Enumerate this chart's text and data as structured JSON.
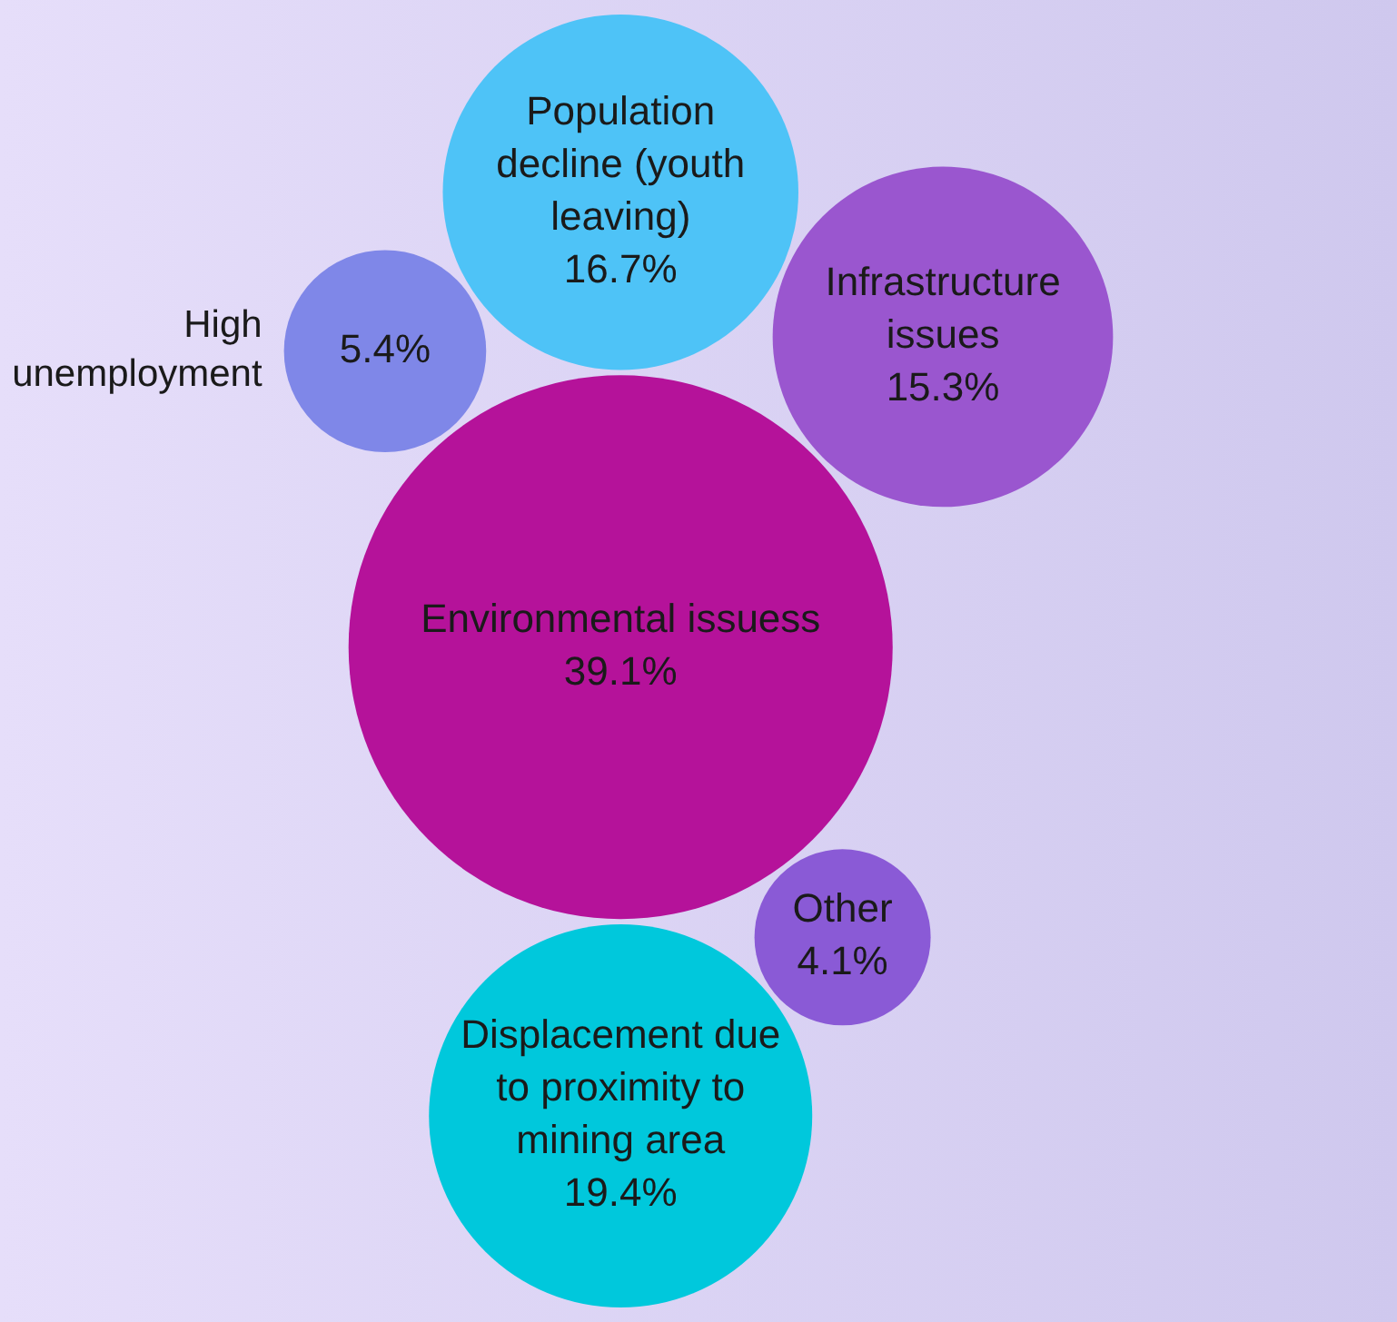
{
  "chart_data": {
    "type": "other",
    "categories": [
      "High unemployment",
      "Infrastructure issues",
      "Environmental issuess",
      "Displacement due to proximity to mining area",
      "Other",
      "Population decline (youth leaving)"
    ],
    "values": [
      5.4,
      15.3,
      39.1,
      19.4,
      4.1,
      16.7
    ],
    "value_labels": [
      "5.4%",
      "15.3%",
      "39.1%",
      "19.4%",
      "4.1%",
      "16.7%"
    ],
    "colors": [
      "#7f87e8",
      "#9a56cf",
      "#b5129a",
      "#00c8dc",
      "#8a5ad6",
      "#4ec3f7"
    ]
  }
}
